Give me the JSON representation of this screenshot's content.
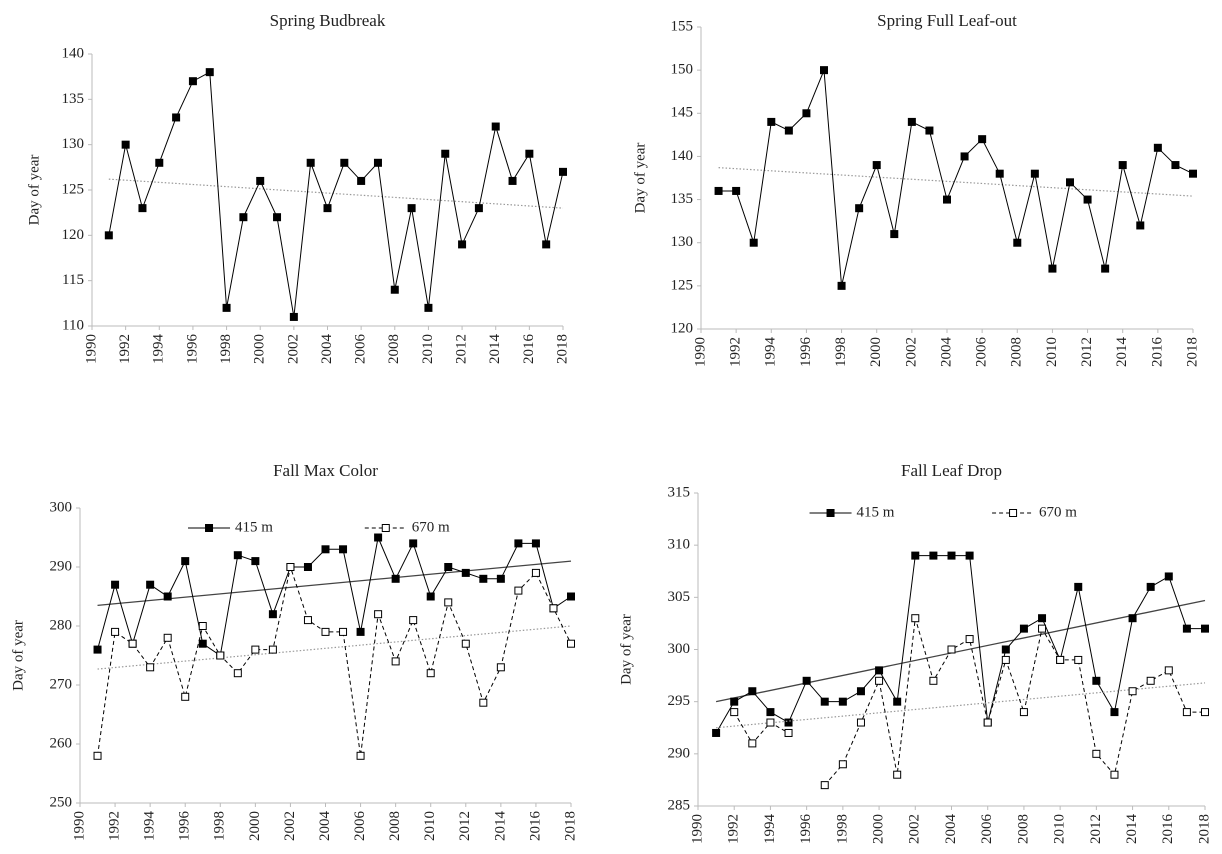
{
  "chart_data": [
    {
      "type": "line",
      "title": "Spring Budbreak",
      "ylabel": "Day of year",
      "x": [
        1991,
        1992,
        1993,
        1994,
        1995,
        1996,
        1997,
        1998,
        1999,
        2000,
        2001,
        2002,
        2003,
        2004,
        2005,
        2006,
        2007,
        2008,
        2009,
        2010,
        2011,
        2012,
        2013,
        2014,
        2015,
        2016,
        2017,
        2018
      ],
      "series": [
        {
          "color": "#000000",
          "style": "solid",
          "marker": "filled",
          "values": [
            120,
            130,
            123,
            128,
            133,
            137,
            138,
            112,
            122,
            126,
            122,
            111,
            128,
            123,
            128,
            126,
            128,
            114,
            123,
            112,
            129,
            119,
            123,
            132,
            126,
            129,
            119,
            127
          ],
          "trend": {
            "x": [
              1991,
              2018
            ],
            "values": [
              126.2,
              123
            ],
            "style": "dotted",
            "color": "#999999"
          }
        }
      ],
      "xlim": [
        1990,
        2018
      ],
      "xticks": [
        1990,
        1992,
        1994,
        1996,
        1998,
        2000,
        2002,
        2004,
        2006,
        2008,
        2010,
        2012,
        2014,
        2016,
        2018
      ],
      "ylim": [
        110,
        140
      ],
      "yticks": [
        110,
        115,
        120,
        125,
        130,
        135,
        140
      ]
    },
    {
      "type": "line",
      "title": "Spring Full Leaf-out",
      "ylabel": "Day of year",
      "x": [
        1991,
        1992,
        1993,
        1994,
        1995,
        1996,
        1997,
        1998,
        1999,
        2000,
        2001,
        2002,
        2003,
        2004,
        2005,
        2006,
        2007,
        2008,
        2009,
        2010,
        2011,
        2012,
        2013,
        2014,
        2015,
        2016,
        2017,
        2018
      ],
      "series": [
        {
          "color": "#000000",
          "style": "solid",
          "marker": "filled",
          "values": [
            136,
            136,
            130,
            144,
            143,
            145,
            150,
            125,
            134,
            139,
            131,
            144,
            143,
            135,
            140,
            142,
            138,
            130,
            138,
            127,
            137,
            135,
            127,
            139,
            132,
            141,
            139,
            138
          ],
          "trend": {
            "x": [
              1991,
              2018
            ],
            "values": [
              138.7,
              135.4
            ],
            "style": "dotted",
            "color": "#999999"
          }
        }
      ],
      "xlim": [
        1990,
        2018
      ],
      "xticks": [
        1990,
        1992,
        1994,
        1996,
        1998,
        2000,
        2002,
        2004,
        2006,
        2008,
        2010,
        2012,
        2014,
        2016,
        2018
      ],
      "ylim": [
        120,
        155
      ],
      "yticks": [
        120,
        125,
        130,
        135,
        140,
        145,
        150,
        155
      ]
    },
    {
      "type": "line",
      "title": "Fall Max Color",
      "ylabel": "Day of year",
      "legend": "top",
      "x": [
        1991,
        1992,
        1993,
        1994,
        1995,
        1996,
        1997,
        1998,
        1999,
        2000,
        2001,
        2002,
        2003,
        2004,
        2005,
        2006,
        2007,
        2008,
        2009,
        2010,
        2011,
        2012,
        2013,
        2014,
        2015,
        2016,
        2017,
        2018
      ],
      "series": [
        {
          "name": "415 m",
          "color": "#000000",
          "style": "solid",
          "marker": "filled",
          "values": [
            276,
            287,
            277,
            287,
            285,
            291,
            277,
            275,
            292,
            291,
            282,
            290,
            290,
            293,
            293,
            279,
            295,
            288,
            294,
            285,
            290,
            289,
            288,
            288,
            294,
            294,
            283,
            285
          ],
          "trend": {
            "x": [
              1991,
              2018
            ],
            "values": [
              283.5,
              291
            ],
            "style": "solid",
            "color": "#444444"
          }
        },
        {
          "name": "670 m",
          "color": "#000000",
          "style": "dashed",
          "marker": "open",
          "values": [
            258,
            279,
            277,
            273,
            278,
            268,
            280,
            275,
            272,
            276,
            276,
            290,
            281,
            279,
            279,
            258,
            282,
            274,
            281,
            272,
            284,
            277,
            267,
            273,
            286,
            289,
            283,
            277
          ],
          "trend": {
            "x": [
              1991,
              2018
            ],
            "values": [
              272.7,
              280
            ],
            "style": "dotted",
            "color": "#999999"
          }
        }
      ],
      "xlim": [
        1990,
        2018
      ],
      "xticks": [
        1990,
        1992,
        1994,
        1996,
        1998,
        2000,
        2002,
        2004,
        2006,
        2008,
        2010,
        2012,
        2014,
        2016,
        2018
      ],
      "ylim": [
        250,
        300
      ],
      "yticks": [
        250,
        260,
        270,
        280,
        290,
        300
      ]
    },
    {
      "type": "line",
      "title": "Fall Leaf Drop",
      "ylabel": "Day of year",
      "legend": "top",
      "x": [
        1991,
        1992,
        1993,
        1994,
        1995,
        1996,
        1997,
        1998,
        1999,
        2000,
        2001,
        2002,
        2003,
        2004,
        2005,
        2006,
        2007,
        2008,
        2009,
        2010,
        2011,
        2012,
        2013,
        2014,
        2015,
        2016,
        2017,
        2018
      ],
      "series": [
        {
          "name": "415 m",
          "color": "#000000",
          "style": "solid",
          "marker": "filled",
          "values": [
            292,
            295,
            296,
            294,
            293,
            297,
            295,
            295,
            296,
            298,
            295,
            309,
            309,
            309,
            309,
            293,
            300,
            302,
            303,
            299,
            306,
            297,
            294,
            303,
            306,
            307,
            302,
            302
          ],
          "trend": {
            "x": [
              1991,
              2018
            ],
            "values": [
              295,
              304.7
            ],
            "style": "solid",
            "color": "#444444"
          }
        },
        {
          "name": "670 m",
          "color": "#000000",
          "style": "dashed",
          "marker": "open",
          "values": [
            null,
            294,
            291,
            293,
            292,
            null,
            287,
            289,
            293,
            297,
            288,
            303,
            297,
            300,
            301,
            293,
            299,
            294,
            302,
            299,
            299,
            290,
            288,
            296,
            297,
            298,
            294,
            294
          ],
          "trend": {
            "x": [
              1991,
              2018
            ],
            "values": [
              292.5,
              296.8
            ],
            "style": "dotted",
            "color": "#999999"
          }
        }
      ],
      "xlim": [
        1990,
        2018
      ],
      "xticks": [
        1990,
        1992,
        1994,
        1996,
        1998,
        2000,
        2002,
        2004,
        2006,
        2008,
        2010,
        2012,
        2014,
        2016,
        2018
      ],
      "ylim": [
        285,
        315
      ],
      "yticks": [
        285,
        290,
        295,
        300,
        305,
        310,
        315
      ]
    }
  ]
}
